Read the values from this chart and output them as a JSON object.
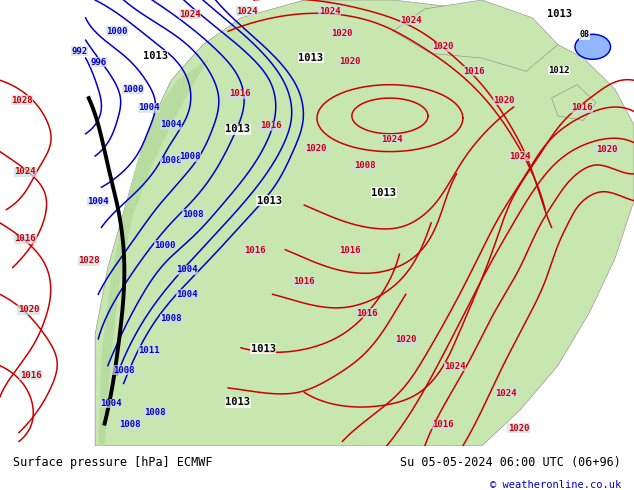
{
  "title_left": "Surface pressure [hPa] ECMWF",
  "title_right": "Su 05-05-2024 06:00 UTC (06+96)",
  "copyright": "© weatheronline.co.uk",
  "bg_color": "#d0dce8",
  "land_color": "#c8e6b0",
  "land_color2": "#b8dba0",
  "text_color_blue": "#0000cc",
  "text_color_red": "#cc0000",
  "figsize": [
    6.34,
    4.9
  ],
  "dpi": 100
}
